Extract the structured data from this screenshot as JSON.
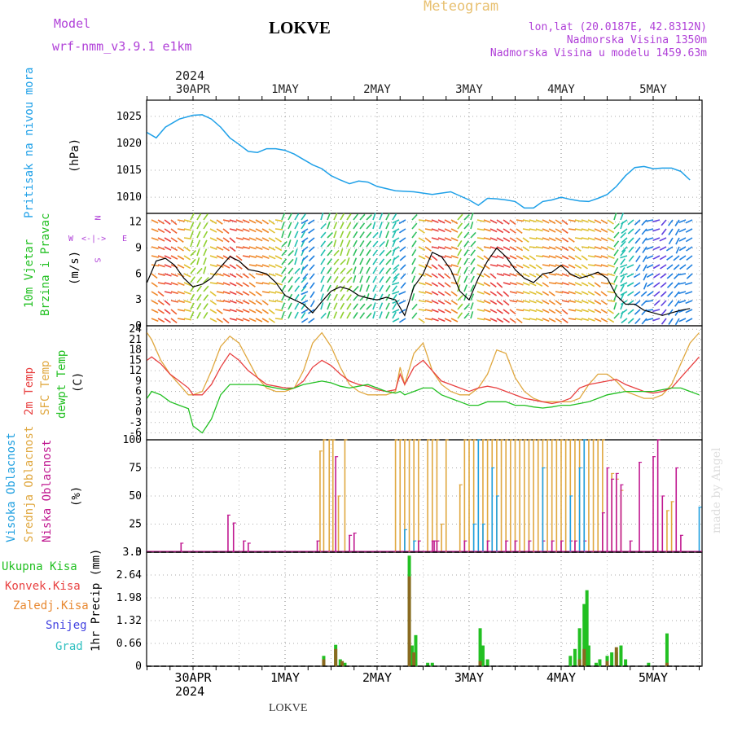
{
  "header": {
    "model_label": "Model",
    "model_name": "wrf-nmm_v3.9.1 e1km",
    "station": "LOKVE",
    "meteogram": "Meteogram",
    "lonlat": "lon,lat (20.0187E, 42.8312N)",
    "elev": "Nadmorska Visina 1350m",
    "elev_model": "Nadmorska Visina u modelu 1459.63m",
    "watermark": "made by Angel",
    "footer_station": "LOKVE"
  },
  "axis_top": {
    "year": "2024",
    "days": [
      "30APR",
      "1MAY",
      "2MAY",
      "3MAY",
      "4MAY",
      "5MAY"
    ]
  },
  "axis_bottom": {
    "year": "2024",
    "days": [
      "30APR",
      "1MAY",
      "2MAY",
      "3MAY",
      "4MAY",
      "5MAY"
    ]
  },
  "panel_labels": {
    "pressure": [
      "Pritisak na nivou mora",
      "(hPa)"
    ],
    "wind": [
      "10m Vjetar",
      "Brzina i Pravac",
      "(m/s)"
    ],
    "compass": {
      "n": "N",
      "s": "S",
      "w": "W",
      "e": "E"
    },
    "temp": [
      "2m Temp",
      "SFC Temp",
      "dewpt Temp",
      "(C)"
    ],
    "cloud": [
      "Visoka Oblacnost",
      "Srednja Oblacnost",
      "Niska Oblacnost",
      "(%)"
    ],
    "precip_units": "1hr Precip (mm)",
    "precip_legend": [
      "Ukupna Kisa",
      "Konvek.Kisa",
      "Zaledj.Kisa",
      "Snijeg",
      "Grad"
    ]
  },
  "colors": {
    "pressure": "#1ea0e8",
    "t2m": "#e84040",
    "sfc": "#e0a840",
    "dewpt": "#22c022",
    "cloud_high": "#20a0e0",
    "cloud_mid": "#e0a840",
    "cloud_low": "#c01890",
    "precip_total": "#22c022",
    "precip_conv": "#e84040",
    "precip_frozen": "#e88830",
    "snow": "#4040e0",
    "hail": "#30c0c0",
    "wind_speed": "#000000"
  },
  "chart_data": [
    {
      "type": "line",
      "panel": "pressure",
      "x_unit": "days from 2024-04-30 00UTC",
      "ylim": [
        1007,
        1028
      ],
      "yticks": [
        1010,
        1015,
        1020,
        1025
      ],
      "series": [
        {
          "name": "Pritisak na nivou mora",
          "x": [
            -0.5,
            -0.4,
            -0.3,
            -0.15,
            0,
            0.1,
            0.2,
            0.3,
            0.4,
            0.5,
            0.6,
            0.7,
            0.8,
            0.9,
            1.0,
            1.1,
            1.2,
            1.3,
            1.4,
            1.5,
            1.6,
            1.7,
            1.8,
            1.9,
            2.0,
            2.2,
            2.4,
            2.6,
            2.8,
            3.0,
            3.1,
            3.2,
            3.3,
            3.4,
            3.5,
            3.6,
            3.7,
            3.8,
            3.9,
            4.0,
            4.1,
            4.2,
            4.3,
            4.4,
            4.5,
            4.6,
            4.7,
            4.8,
            4.9,
            5.0,
            5.1,
            5.2,
            5.3,
            5.4
          ],
          "values": [
            1022,
            1021,
            1023,
            1024.5,
            1025.2,
            1025.3,
            1024.5,
            1023,
            1021,
            1019.8,
            1018.5,
            1018.3,
            1019,
            1019,
            1018.7,
            1018,
            1017,
            1016,
            1015.3,
            1014,
            1013.2,
            1012.5,
            1013,
            1012.8,
            1012,
            1011.2,
            1011,
            1010.5,
            1011,
            1009.5,
            1008.5,
            1009.8,
            1009.7,
            1009.5,
            1009.2,
            1008,
            1008,
            1009.2,
            1009.5,
            1010,
            1009.6,
            1009.3,
            1009.2,
            1009.8,
            1010.5,
            1012,
            1014,
            1015.5,
            1015.7,
            1015.3,
            1015.4,
            1015.4,
            1014.8,
            1013.2
          ]
        }
      ]
    },
    {
      "type": "line",
      "panel": "wind",
      "x_unit": "days from 2024-04-30 00UTC",
      "ylim": [
        0,
        13
      ],
      "yticks": [
        0,
        3,
        6,
        9,
        12
      ],
      "series": [
        {
          "name": "10m Vjetar",
          "x": [
            -0.5,
            -0.4,
            -0.3,
            -0.2,
            -0.1,
            0,
            0.1,
            0.2,
            0.3,
            0.4,
            0.5,
            0.6,
            0.7,
            0.8,
            0.9,
            1.0,
            1.1,
            1.2,
            1.3,
            1.4,
            1.5,
            1.6,
            1.7,
            1.8,
            1.9,
            2.0,
            2.1,
            2.2,
            2.3,
            2.4,
            2.5,
            2.6,
            2.7,
            2.8,
            2.9,
            3.0,
            3.1,
            3.2,
            3.3,
            3.4,
            3.5,
            3.6,
            3.7,
            3.8,
            3.9,
            4.0,
            4.1,
            4.2,
            4.3,
            4.4,
            4.5,
            4.6,
            4.7,
            4.8,
            4.9,
            5.0,
            5.1,
            5.2,
            5.3,
            5.4
          ],
          "values": [
            5,
            7.5,
            7.8,
            7,
            5.5,
            4.5,
            4.8,
            5.5,
            6.8,
            8,
            7.5,
            6.5,
            6.3,
            6,
            5,
            3.5,
            3,
            2.5,
            1.5,
            2.8,
            4,
            4.5,
            4.2,
            3.5,
            3.2,
            3,
            3.3,
            3,
            1.2,
            4.5,
            6,
            8.5,
            8,
            6.5,
            4,
            3,
            5.5,
            7.5,
            9,
            8,
            6.5,
            5.5,
            5,
            6,
            6.2,
            7,
            6,
            5.5,
            5.8,
            6.2,
            5.5,
            3.5,
            2.5,
            2.5,
            1.8,
            1.5,
            1.2,
            1.5,
            1.8,
            2
          ]
        }
      ]
    },
    {
      "type": "line",
      "panel": "temperature",
      "x_unit": "days from 2024-04-30 00UTC",
      "ylim": [
        -8,
        25
      ],
      "yticks": [
        -6,
        -3,
        0,
        3,
        6,
        9,
        12,
        15,
        18,
        21,
        24
      ],
      "x": [
        -0.5,
        -0.45,
        -0.35,
        -0.25,
        -0.15,
        -0.05,
        0,
        0.1,
        0.2,
        0.3,
        0.4,
        0.5,
        0.6,
        0.7,
        0.8,
        0.9,
        1.0,
        1.1,
        1.2,
        1.3,
        1.4,
        1.5,
        1.6,
        1.7,
        1.8,
        1.9,
        2.0,
        2.1,
        2.2,
        2.25,
        2.3,
        2.4,
        2.5,
        2.6,
        2.7,
        2.8,
        2.9,
        3.0,
        3.1,
        3.2,
        3.3,
        3.4,
        3.5,
        3.6,
        3.7,
        3.8,
        3.9,
        4.0,
        4.1,
        4.2,
        4.3,
        4.4,
        4.5,
        4.6,
        4.7,
        4.8,
        4.9,
        5.0,
        5.1,
        5.2,
        5.3,
        5.4,
        5.5
      ],
      "series": [
        {
          "name": "2m Temp",
          "values": [
            15,
            16,
            14,
            11,
            9,
            7,
            5,
            5,
            8,
            13,
            17,
            15,
            12,
            10,
            8,
            7.5,
            7,
            7,
            9,
            13,
            15,
            13.5,
            11,
            9,
            8,
            7.5,
            6.5,
            6,
            6.5,
            11,
            8,
            13,
            15,
            12,
            9,
            8,
            7,
            6,
            7,
            7.5,
            7,
            6,
            5,
            4,
            3.5,
            3,
            2.5,
            3,
            4,
            7,
            8,
            8.5,
            9,
            9.5,
            8,
            7,
            6,
            5.5,
            6,
            7,
            10,
            13,
            16
          ]
        },
        {
          "name": "SFC Temp",
          "values": [
            23,
            21,
            15,
            11,
            8,
            5,
            5,
            6,
            12,
            19,
            22,
            20,
            15,
            10,
            7,
            6,
            6,
            7,
            12,
            20,
            23,
            19,
            13,
            8,
            6,
            5,
            5,
            5,
            6,
            13,
            8,
            17,
            20,
            12,
            8,
            6,
            5,
            5,
            7,
            11,
            18,
            17,
            10,
            6,
            4,
            3,
            3,
            3,
            3,
            4,
            8,
            11,
            11,
            9,
            6,
            5,
            4,
            4,
            5,
            8,
            14,
            20,
            23
          ]
        },
        {
          "name": "dewpt Temp",
          "values": [
            4,
            6,
            5,
            3,
            2,
            1,
            -4,
            -6,
            -2,
            5,
            8,
            8,
            8,
            8,
            7.5,
            7,
            6.5,
            7,
            8,
            8.5,
            9,
            8.5,
            7.5,
            7,
            7.5,
            8,
            7,
            6,
            5.5,
            6,
            5,
            6,
            7,
            7,
            5,
            4,
            3,
            2,
            2,
            3,
            3,
            3,
            2,
            2,
            1.5,
            1.2,
            1.5,
            2,
            2,
            2.5,
            3,
            4,
            5,
            5.5,
            6,
            6,
            6,
            6,
            6.5,
            7,
            7,
            6,
            5
          ]
        }
      ]
    },
    {
      "type": "bar",
      "panel": "cloud",
      "x_unit": "days from 2024-04-30 00UTC",
      "ylim": [
        0,
        100
      ],
      "yticks": [
        0,
        25,
        50,
        75,
        100
      ],
      "series": [
        {
          "name": "Visoka Oblacnost",
          "x": [
            2.3,
            2.4,
            3.05,
            3.1,
            3.15,
            3.25,
            3.3,
            3.8,
            4.1,
            4.2,
            4.25,
            5.5
          ],
          "values": [
            20,
            10,
            25,
            100,
            25,
            75,
            50,
            75,
            50,
            75,
            100,
            40
          ]
        },
        {
          "name": "Srednja Oblacnost",
          "x": [
            1.38,
            1.42,
            1.48,
            1.52,
            1.58,
            1.65,
            2.2,
            2.25,
            2.3,
            2.35,
            2.4,
            2.45,
            2.55,
            2.6,
            2.65,
            2.7,
            2.75,
            2.9,
            2.95,
            3.0,
            3.05,
            3.1,
            3.15,
            3.2,
            3.25,
            3.3,
            3.35,
            3.4,
            3.45,
            3.5,
            3.55,
            3.6,
            3.65,
            3.7,
            3.75,
            3.8,
            3.85,
            3.9,
            3.95,
            4.0,
            4.05,
            4.1,
            4.15,
            4.2,
            4.25,
            4.3,
            4.35,
            4.4,
            4.45,
            4.55,
            4.6,
            4.65,
            5.15,
            5.2
          ],
          "values": [
            90,
            100,
            100,
            100,
            50,
            100,
            100,
            100,
            100,
            100,
            100,
            100,
            100,
            100,
            100,
            25,
            100,
            60,
            100,
            100,
            100,
            100,
            100,
            100,
            100,
            100,
            100,
            100,
            100,
            100,
            100,
            100,
            100,
            100,
            100,
            100,
            100,
            100,
            100,
            100,
            100,
            100,
            100,
            100,
            100,
            100,
            100,
            100,
            100,
            70,
            65,
            55,
            37,
            45
          ]
        },
        {
          "name": "Niska Oblacnost",
          "x": [
            -0.13,
            0.38,
            0.44,
            0.55,
            0.6,
            1.35,
            1.55,
            1.7,
            1.75,
            2.45,
            2.6,
            2.62,
            2.65,
            2.95,
            3.2,
            3.4,
            3.5,
            3.65,
            3.8,
            3.9,
            4.0,
            4.1,
            4.15,
            4.25,
            4.45,
            4.5,
            4.55,
            4.6,
            4.65,
            4.75,
            4.85,
            5.0,
            5.05,
            5.1,
            5.25,
            5.3
          ],
          "values": [
            8,
            33,
            26,
            10,
            8,
            10,
            85,
            15,
            17,
            10,
            10,
            10,
            10,
            10,
            10,
            10,
            10,
            10,
            10,
            10,
            10,
            10,
            10,
            10,
            35,
            75,
            65,
            70,
            60,
            10,
            80,
            85,
            100,
            50,
            75,
            15
          ]
        }
      ]
    },
    {
      "type": "bar",
      "panel": "precip",
      "x_unit": "days from 2024-04-30 00UTC",
      "ylim": [
        0,
        3.3
      ],
      "yticks": [
        0,
        0.66,
        1.32,
        1.98,
        2.64,
        3.3
      ],
      "series": [
        {
          "name": "Ukupna Kisa",
          "x": [
            1.42,
            1.55,
            1.6,
            1.65,
            2.35,
            2.38,
            2.42,
            2.55,
            2.6,
            3.12,
            3.15,
            3.2,
            4.1,
            4.15,
            4.2,
            4.25,
            4.28,
            4.3,
            4.38,
            4.42,
            4.5,
            4.55,
            4.6,
            4.65,
            4.7,
            4.95,
            5.15
          ],
          "values": [
            0.3,
            0.62,
            0.2,
            0.1,
            3.2,
            0.6,
            0.9,
            0.1,
            0.1,
            1.1,
            0.6,
            0.2,
            0.3,
            0.5,
            1.1,
            1.8,
            2.2,
            0.6,
            0.1,
            0.2,
            0.3,
            0.4,
            0.4,
            0.6,
            0.2,
            0.1,
            0.95
          ]
        },
        {
          "name": "Konvek.Kisa",
          "x": [
            1.42,
            1.55,
            1.62,
            2.35,
            2.4,
            3.12,
            4.2,
            4.25,
            4.5,
            4.6,
            5.15
          ],
          "values": [
            0.2,
            0.5,
            0.15,
            2.6,
            0.4,
            0.15,
            0.2,
            0.5,
            0.15,
            0.55,
            0.1
          ]
        },
        {
          "name": "Zaledj.Kisa",
          "values": []
        },
        {
          "name": "Snijeg",
          "values": []
        },
        {
          "name": "Grad",
          "values": []
        }
      ]
    }
  ]
}
